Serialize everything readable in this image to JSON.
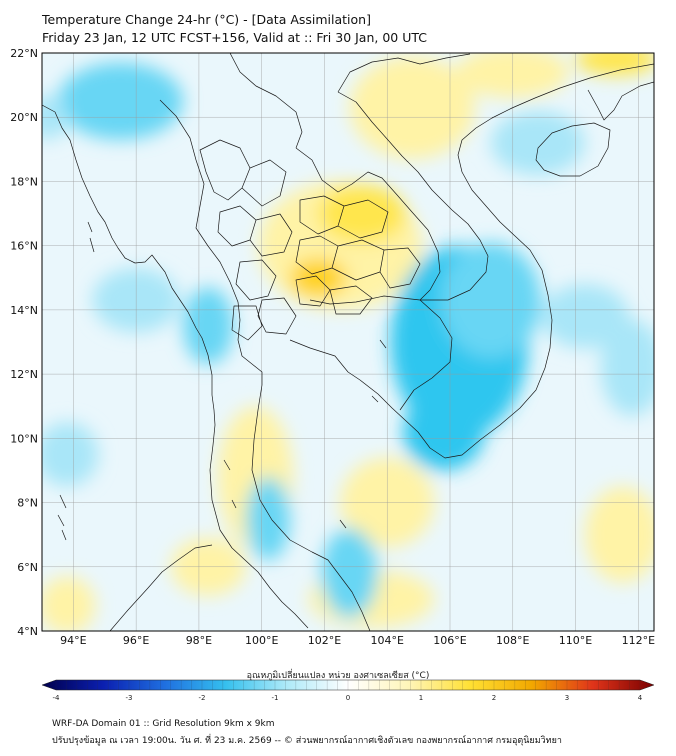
{
  "title": {
    "line1": "Temperature Change 24-hr (°C) - [Data Assimilation]",
    "line2": "Friday 23 Jan, 12 UTC FCST+156, Valid at :: Fri 30 Jan, 00 UTC"
  },
  "map": {
    "lat_range": [
      4,
      22
    ],
    "lon_range": [
      93,
      112.5
    ],
    "lat_ticks": [
      {
        "v": 22,
        "label": "22°N"
      },
      {
        "v": 20,
        "label": "20°N"
      },
      {
        "v": 18,
        "label": "18°N"
      },
      {
        "v": 16,
        "label": "16°N"
      },
      {
        "v": 14,
        "label": "14°N"
      },
      {
        "v": 12,
        "label": "12°N"
      },
      {
        "v": 10,
        "label": "10°N"
      },
      {
        "v": 8,
        "label": "8°N"
      },
      {
        "v": 6,
        "label": "6°N"
      },
      {
        "v": 4,
        "label": "4°N"
      }
    ],
    "lon_ticks": [
      {
        "v": 94,
        "label": "94°E"
      },
      {
        "v": 96,
        "label": "96°E"
      },
      {
        "v": 98,
        "label": "98°E"
      },
      {
        "v": 100,
        "label": "100°E"
      },
      {
        "v": 102,
        "label": "102°E"
      },
      {
        "v": 104,
        "label": "104°E"
      },
      {
        "v": 106,
        "label": "106°E"
      },
      {
        "v": 108,
        "label": "108°E"
      },
      {
        "v": 110,
        "label": "110°E"
      },
      {
        "v": 112,
        "label": "112°E"
      }
    ],
    "field_regions": [
      {
        "kind": "warm",
        "level": 0.25,
        "lon": 102.5,
        "lat": 16.0,
        "rx": 2.6,
        "ry": 2.0
      },
      {
        "kind": "warm",
        "level": 0.6,
        "lon": 101.8,
        "lat": 15.0,
        "rx": 0.9,
        "ry": 0.6
      },
      {
        "kind": "warm",
        "level": 0.3,
        "lon": 103.2,
        "lat": 17.0,
        "rx": 1.4,
        "ry": 0.9
      },
      {
        "kind": "warm",
        "level": 0.5,
        "lon": 105.0,
        "lat": 20.5,
        "rx": 1.2,
        "ry": 1.0
      },
      {
        "kind": "warm",
        "level": 0.25,
        "lon": 104.8,
        "lat": 20.3,
        "rx": 2.0,
        "ry": 1.6
      },
      {
        "kind": "warm",
        "level": 0.3,
        "lon": 111.3,
        "lat": 21.8,
        "rx": 1.3,
        "ry": 0.5
      },
      {
        "kind": "warm",
        "level": 0.2,
        "lon": 108.0,
        "lat": 21.4,
        "rx": 1.8,
        "ry": 0.8
      },
      {
        "kind": "warm",
        "level": 0.15,
        "lon": 99.8,
        "lat": 8.8,
        "rx": 1.2,
        "ry": 2.2
      },
      {
        "kind": "warm",
        "level": 0.15,
        "lon": 104.0,
        "lat": 8.0,
        "rx": 1.5,
        "ry": 1.4
      },
      {
        "kind": "warm",
        "level": 0.15,
        "lon": 103.5,
        "lat": 5.0,
        "rx": 2.0,
        "ry": 0.9
      },
      {
        "kind": "warm",
        "level": 0.15,
        "lon": 93.8,
        "lat": 4.8,
        "rx": 0.9,
        "ry": 0.9
      },
      {
        "kind": "warm",
        "level": 0.15,
        "lon": 98.3,
        "lat": 6.0,
        "rx": 1.2,
        "ry": 0.9
      },
      {
        "kind": "warm",
        "level": 0.15,
        "lon": 111.5,
        "lat": 7.0,
        "rx": 1.2,
        "ry": 1.5
      },
      {
        "kind": "cool",
        "level": 0.4,
        "lon": 106.3,
        "lat": 13.0,
        "rx": 2.2,
        "ry": 3.0
      },
      {
        "kind": "cool",
        "level": 0.45,
        "lon": 105.8,
        "lat": 10.2,
        "rx": 1.3,
        "ry": 1.2
      },
      {
        "kind": "cool",
        "level": 0.3,
        "lon": 107.3,
        "lat": 14.3,
        "rx": 1.6,
        "ry": 1.8
      },
      {
        "kind": "cool",
        "level": 0.3,
        "lon": 95.5,
        "lat": 20.5,
        "rx": 2.0,
        "ry": 1.2
      },
      {
        "kind": "cool",
        "level": 0.2,
        "lon": 93.2,
        "lat": 20.0,
        "rx": 0.6,
        "ry": 0.7
      },
      {
        "kind": "cool",
        "level": 0.25,
        "lon": 98.3,
        "lat": 13.5,
        "rx": 0.8,
        "ry": 1.2
      },
      {
        "kind": "cool",
        "level": 0.3,
        "lon": 100.2,
        "lat": 7.5,
        "rx": 0.7,
        "ry": 1.3
      },
      {
        "kind": "cool",
        "level": 0.25,
        "lon": 102.8,
        "lat": 5.8,
        "rx": 0.9,
        "ry": 1.4
      },
      {
        "kind": "cool",
        "level": 0.2,
        "lon": 108.8,
        "lat": 19.2,
        "rx": 1.5,
        "ry": 1.0
      },
      {
        "kind": "cool",
        "level": 0.2,
        "lon": 110.3,
        "lat": 13.8,
        "rx": 1.4,
        "ry": 1.0
      },
      {
        "kind": "cool",
        "level": 0.15,
        "lon": 96.0,
        "lat": 14.3,
        "rx": 1.4,
        "ry": 1.0
      },
      {
        "kind": "cool",
        "level": 0.15,
        "lon": 93.8,
        "lat": 9.5,
        "rx": 1.0,
        "ry": 1.0
      },
      {
        "kind": "cool",
        "level": 0.2,
        "lon": 111.8,
        "lat": 12.2,
        "rx": 1.0,
        "ry": 1.5
      }
    ]
  },
  "colorbar": {
    "label": "อุณหภูมิเปลี่ยนแปลง หน่วย องศาเซลเซียส (°C)",
    "min": -4,
    "max": 4,
    "ticks": [
      {
        "v": -4,
        "label": "-4"
      },
      {
        "v": -3,
        "label": "-3"
      },
      {
        "v": -2,
        "label": "-2"
      },
      {
        "v": -1,
        "label": "-1"
      },
      {
        "v": 0,
        "label": "0"
      },
      {
        "v": 1,
        "label": "1"
      },
      {
        "v": 2,
        "label": "2"
      },
      {
        "v": 3,
        "label": "3"
      },
      {
        "v": 4,
        "label": "4"
      }
    ],
    "stops": [
      "#00004d",
      "#0b1fb0",
      "#1f6fe0",
      "#35c0ee",
      "#aeeaf8",
      "#ffffff",
      "#fff5b8",
      "#ffe033",
      "#f2a800",
      "#e0341a",
      "#7a0000"
    ]
  },
  "footer": {
    "line1": "WRF-DA Domain 01 :: Grid Resolution 9km x 9km",
    "line2": "ปรับปรุงข้อมูล ณ เวลา 19:00น. วัน ศ. ที่ 23 ม.ค. 2569 -- © ส่วนพยากรณ์อากาศเชิงตัวเลข กองพยากรณ์อากาศ กรมอุตุนิยมวิทยา"
  }
}
